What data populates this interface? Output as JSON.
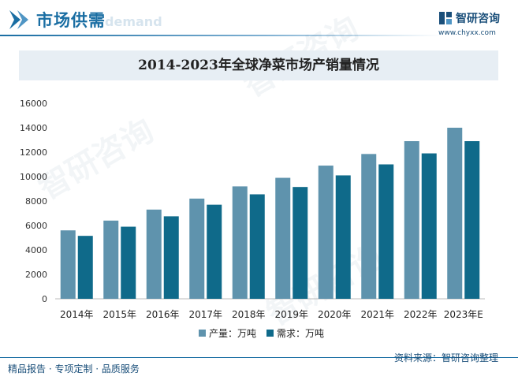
{
  "header": {
    "title": "市场供需",
    "ghost_text": "d demand",
    "brand_name": "智研咨询",
    "brand_url": "www.chyxx.com"
  },
  "watermark_text": "智研咨询",
  "footer": {
    "left": "精品报告 · 专项定制 · 品质服务",
    "right": "资料来源：智研咨询整理"
  },
  "colors": {
    "production": "#5f93ad",
    "demand": "#0f6a8a",
    "accent": "#1a6ea3"
  },
  "chart_data": {
    "type": "bar",
    "title": "2014-2023年全球净菜市场产销量情况",
    "categories": [
      "2014年",
      "2015年",
      "2016年",
      "2017年",
      "2018年",
      "2019年",
      "2020年",
      "2021年",
      "2022年",
      "2023年E"
    ],
    "series": [
      {
        "name": "产量：万吨",
        "values": [
          5600,
          6400,
          7300,
          8200,
          9200,
          9900,
          10900,
          11850,
          12900,
          14000
        ]
      },
      {
        "name": "需求：万吨",
        "values": [
          5150,
          5900,
          6750,
          7700,
          8550,
          9150,
          10100,
          11000,
          11900,
          12900
        ]
      }
    ],
    "yticks": [
      0,
      2000,
      4000,
      6000,
      8000,
      10000,
      12000,
      14000,
      16000
    ],
    "ylim": [
      0,
      16000
    ],
    "legend_position": "bottom",
    "grid": false
  }
}
